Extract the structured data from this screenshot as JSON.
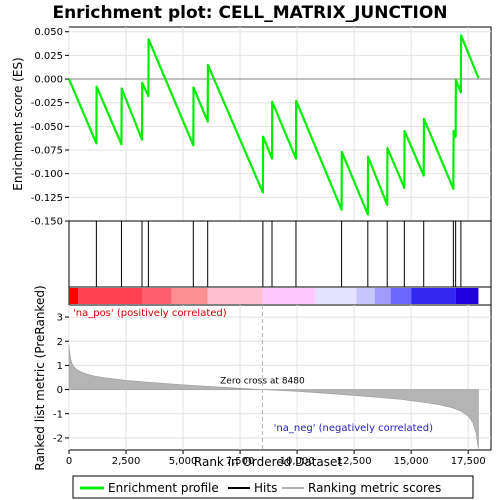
{
  "chart_data": {
    "type": "line",
    "title": "Enrichment plot: CELL_MATRIX_JUNCTION",
    "xlabel": "Rank in Ordered Dataset",
    "es_panel": {
      "ylabel": "Enrichment score (ES)",
      "ylim": [
        -0.15,
        0.055
      ],
      "yticks": [
        "0.050",
        "0.025",
        "0.000",
        "-0.025",
        "-0.050",
        "-0.075",
        "-0.100",
        "-0.125",
        "-0.150"
      ],
      "ytick_values": [
        0.05,
        0.025,
        0.0,
        -0.025,
        -0.05,
        -0.075,
        -0.1,
        -0.125,
        -0.15
      ],
      "grid": true,
      "series_name": "Enrichment profile",
      "color": "#00ee00",
      "x": [
        0,
        1200,
        1210,
        2300,
        2310,
        3200,
        3210,
        3480,
        3490,
        5450,
        5460,
        6080,
        6090,
        8500,
        8510,
        8900,
        8910,
        9950,
        9960,
        11950,
        11960,
        13100,
        13110,
        13950,
        13960,
        14700,
        14710,
        15550,
        15560,
        16850,
        16860,
        16950,
        16960,
        17180,
        17190,
        17950
      ],
      "y": [
        0.0,
        -0.068,
        -0.008,
        -0.069,
        -0.01,
        -0.064,
        -0.004,
        -0.018,
        0.042,
        -0.07,
        -0.009,
        -0.045,
        0.015,
        -0.12,
        -0.061,
        -0.084,
        -0.024,
        -0.084,
        -0.023,
        -0.138,
        -0.077,
        -0.143,
        -0.082,
        -0.133,
        -0.073,
        -0.115,
        -0.055,
        -0.102,
        -0.042,
        -0.116,
        -0.055,
        -0.061,
        -0.001,
        -0.014,
        0.046,
        0.001
      ]
    },
    "hits": {
      "legend_label": "Hits",
      "x": [
        1200,
        2300,
        3200,
        3480,
        5450,
        6080,
        8500,
        8900,
        9950,
        11950,
        13100,
        13950,
        14700,
        15550,
        16850,
        16950,
        17180
      ]
    },
    "metric_panel": {
      "ylabel": "Ranked list metric (PreRanked)",
      "ylim": [
        -2.5,
        3.5
      ],
      "yticks": [
        "3",
        "2",
        "1",
        "0",
        "-1",
        "-2"
      ],
      "ytick_values": [
        3,
        2,
        1,
        0,
        -1,
        -2
      ],
      "legend_label": "Ranking metric scores",
      "zero_cross_label": "Zero cross at 8480",
      "zero_cross_x": 8480,
      "pos_label": "'na_pos' (positively correlated)",
      "neg_label": "'na_neg' (negatively correlated)",
      "x": [
        0,
        20,
        60,
        120,
        200,
        350,
        600,
        1000,
        1500,
        2500,
        3500,
        5000,
        6500,
        8480,
        10000,
        11500,
        13000,
        14500,
        15500,
        16200,
        16800,
        17200,
        17500,
        17700,
        17850,
        17900,
        17950
      ],
      "y": [
        1.85,
        1.6,
        1.35,
        1.1,
        0.95,
        0.82,
        0.7,
        0.58,
        0.5,
        0.38,
        0.3,
        0.2,
        0.11,
        0.0,
        -0.07,
        -0.17,
        -0.28,
        -0.4,
        -0.52,
        -0.62,
        -0.75,
        -0.9,
        -1.1,
        -1.35,
        -1.8,
        -2.2,
        -2.45
      ]
    },
    "xlim": [
      0,
      18500
    ],
    "xticks": [
      "0",
      "2,500",
      "5,000",
      "7,500",
      "10,000",
      "12,500",
      "15,000",
      "17,500"
    ],
    "xtick_values": [
      0,
      2500,
      5000,
      7500,
      10000,
      12500,
      15000,
      17500
    ],
    "color_bar": {
      "colors": [
        "#ff0000",
        "#ff4050",
        "#ff6070",
        "#ff8e90",
        "#ffbfd0",
        "#ffc8ff",
        "#e4e2ff",
        "#c8c6ff",
        "#a09cff",
        "#6c66ff",
        "#3228f0",
        "#2200dd"
      ],
      "bounds": [
        0,
        400,
        3200,
        4500,
        6080,
        8480,
        10800,
        12600,
        13400,
        14100,
        15000,
        16950,
        17950
      ]
    },
    "legend": [
      "Enrichment profile",
      "Hits",
      "Ranking metric scores"
    ]
  }
}
